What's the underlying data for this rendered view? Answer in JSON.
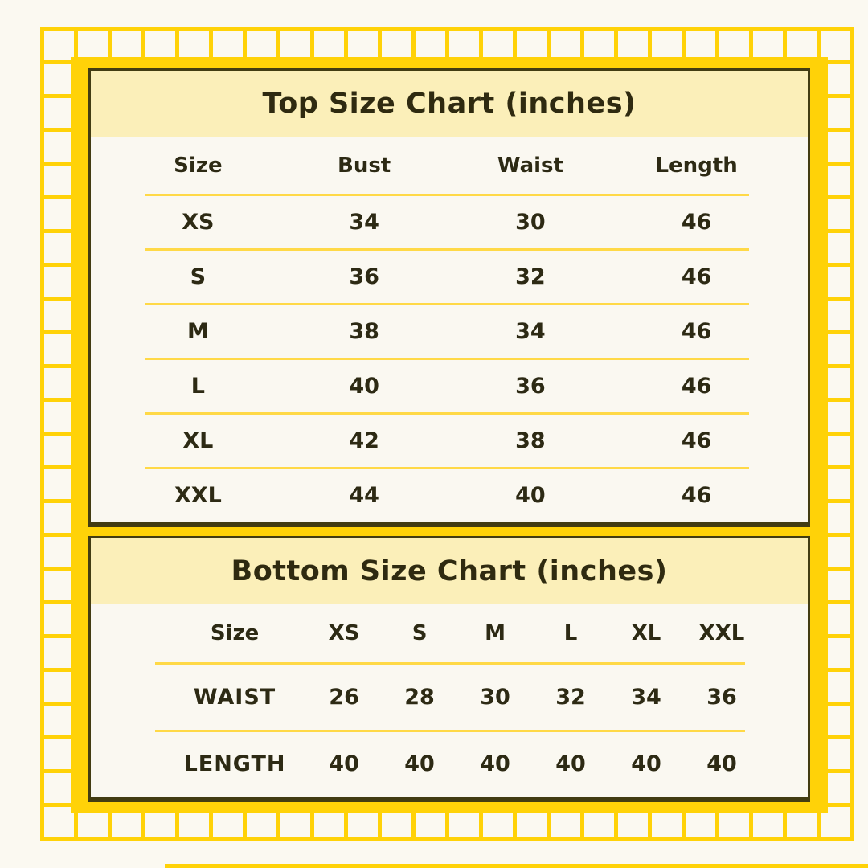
{
  "style": {
    "accent_yellow": "#ffd208",
    "divider_yellow": "#ffd947",
    "header_band_yellow": "#fbefb9",
    "card_background": "#faf8f1",
    "page_background": "#fbf9f1",
    "border_dark_olive": "#423c12",
    "text_color": "#2d2a14"
  },
  "top_chart": {
    "title": "Top Size Chart (inches)",
    "columns": [
      "Size",
      "Bust",
      "Waist",
      "Length"
    ],
    "rows": [
      [
        "XS",
        "34",
        "30",
        "46"
      ],
      [
        "S",
        "36",
        "32",
        "46"
      ],
      [
        "M",
        "38",
        "34",
        "46"
      ],
      [
        "L",
        "40",
        "36",
        "46"
      ],
      [
        "XL",
        "42",
        "38",
        "46"
      ],
      [
        "XXL",
        "44",
        "40",
        "46"
      ]
    ]
  },
  "bottom_chart": {
    "title": "Bottom Size Chart (inches)",
    "columns": [
      "Size",
      "XS",
      "S",
      "M",
      "L",
      "XL",
      "XXL"
    ],
    "rows": [
      [
        "WAIST",
        "26",
        "28",
        "30",
        "32",
        "34",
        "36"
      ],
      [
        "LENGTH",
        "40",
        "40",
        "40",
        "40",
        "40",
        "40"
      ]
    ]
  }
}
